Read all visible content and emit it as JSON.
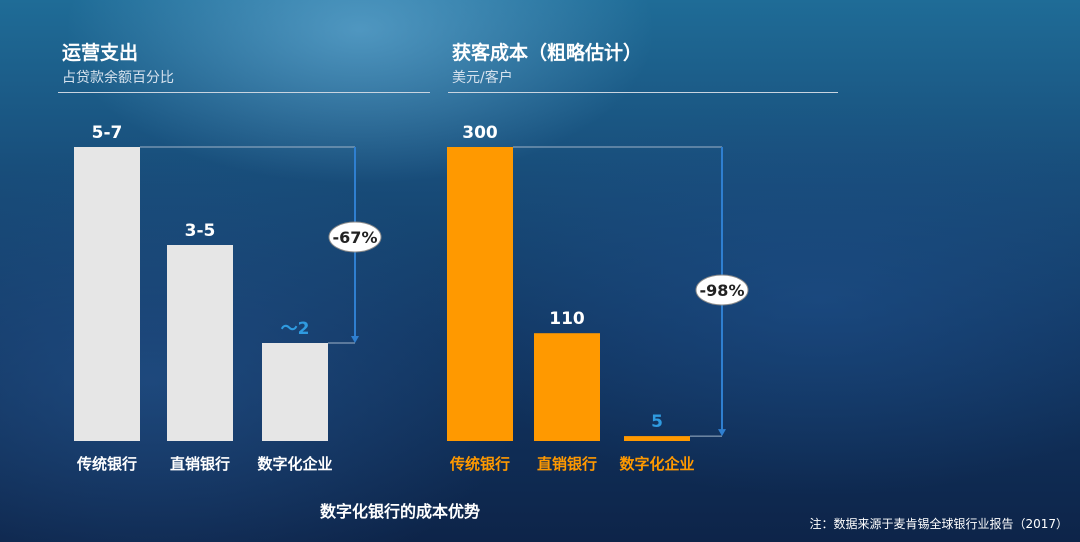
{
  "chart_data": [
    {
      "type": "bar",
      "title": "运营支出",
      "subtitle": "占贷款余额百分比",
      "categories": [
        "传统银行",
        "直销银行",
        "数字化企业"
      ],
      "values": [
        6,
        4,
        2
      ],
      "value_labels": [
        "5-7",
        "3-5",
        "～2"
      ],
      "bar_color": "#e6e6e6",
      "category_color": "#ffffff",
      "highlight_label_color": "#2f9be0",
      "change_label": "-67%"
    },
    {
      "type": "bar",
      "title": "获客成本（粗略估计）",
      "subtitle": "美元/客户",
      "categories": [
        "传统银行",
        "直销银行",
        "数字化企业"
      ],
      "values": [
        300,
        110,
        5
      ],
      "value_labels": [
        "300",
        "110",
        "5"
      ],
      "bar_color": "#ff9900",
      "category_color": "#ff9900",
      "highlight_label_color": "#2f9be0",
      "change_label": "-98%"
    }
  ],
  "footer_title": "数字化银行的成本优势",
  "note": "注：数据来源于麦肯锡全球银行业报告（2017）"
}
